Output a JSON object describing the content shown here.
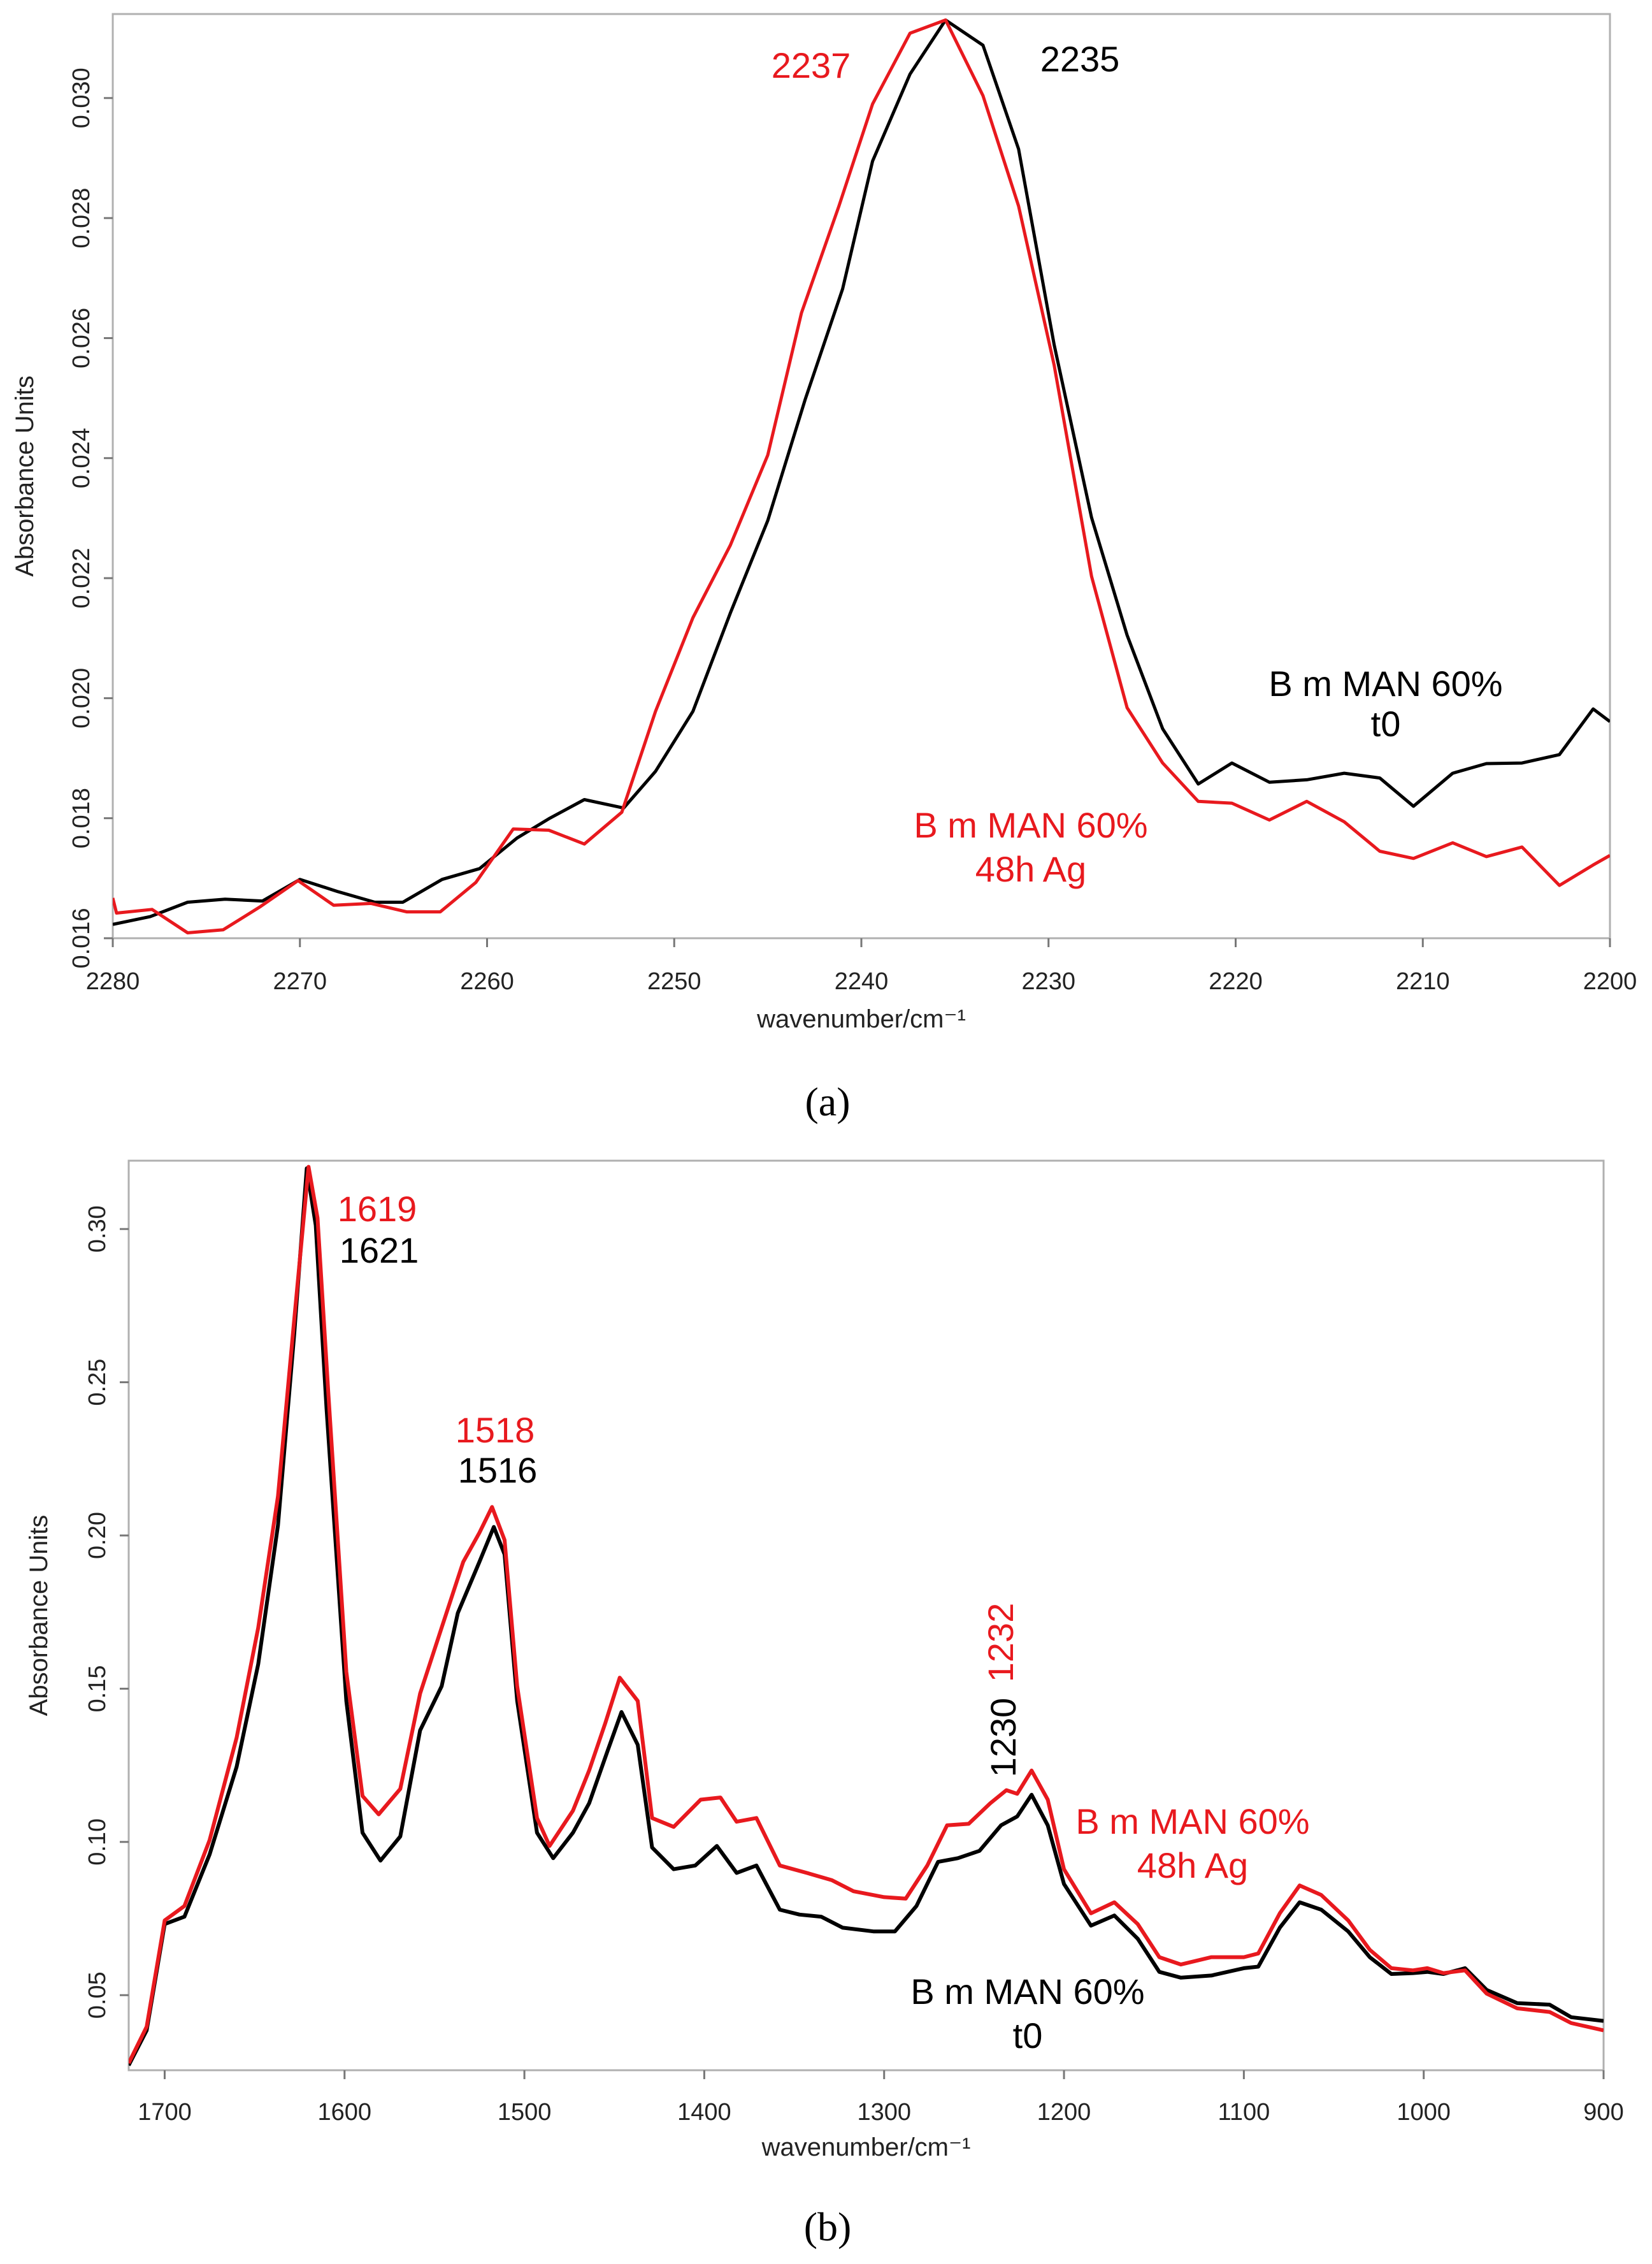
{
  "colors": {
    "t0": "#000000",
    "aged": "#e8191e",
    "frame": "#b0b0b0"
  },
  "chart_data": [
    {
      "type": "line",
      "panel_label": "(a)",
      "xlabel": "wavenumber/cm⁻¹",
      "ylabel": "Absorbance Units",
      "xlim": [
        2280,
        2200
      ],
      "ylim": [
        0.016,
        0.0314
      ],
      "xticks": [
        "2280",
        "2270",
        "2260",
        "2250",
        "2240",
        "2230",
        "2220",
        "2210",
        "2200"
      ],
      "yticks": [
        "0.016",
        "0.018",
        "0.020",
        "0.022",
        "0.024",
        "0.026",
        "0.028",
        "0.030"
      ],
      "grid": false,
      "series": [
        {
          "name": "B m MAN 60% t0",
          "color": "#000000",
          "x": [
            2280,
            2278,
            2276,
            2274,
            2272,
            2270,
            2268,
            2266,
            2264.5,
            2262.4,
            2260.4,
            2258.4,
            2256.7,
            2254.8,
            2252.7,
            2251,
            2249,
            2247,
            2245,
            2243,
            2241,
            2239.4,
            2237.4,
            2235.5,
            2233.5,
            2231.6,
            2229.7,
            2227.7,
            2225.8,
            2223.9,
            2222,
            2220.2,
            2218.2,
            2216.2,
            2214.2,
            2212.3,
            2210.5,
            2208.4,
            2206.6,
            2204.7,
            2202.7,
            2200.9,
            2200
          ],
          "y": [
            0.01623,
            0.01636,
            0.0166,
            0.01665,
            0.01662,
            0.01698,
            0.01678,
            0.0166,
            0.0166,
            0.01698,
            0.01716,
            0.01767,
            0.01799,
            0.01831,
            0.01817,
            0.01878,
            0.01978,
            0.02142,
            0.02296,
            0.02498,
            0.02682,
            0.02895,
            0.0304,
            0.0313,
            0.03088,
            0.02915,
            0.02589,
            0.02301,
            0.02105,
            0.01949,
            0.01857,
            0.01892,
            0.0186,
            0.01864,
            0.01875,
            0.01867,
            0.0182,
            0.01875,
            0.01891,
            0.01892,
            0.01906,
            0.01982,
            0.01961
          ]
        },
        {
          "name": "B m MAN 60% 48h Ag",
          "color": "#e8191e",
          "x": [
            2280,
            2279.8,
            2277.9,
            2276,
            2274.1,
            2272.1,
            2270.1,
            2268.2,
            2266.2,
            2264.3,
            2262.5,
            2260.6,
            2258.6,
            2256.7,
            2254.8,
            2252.8,
            2251,
            2249,
            2247,
            2245,
            2243.2,
            2241.2,
            2239.4,
            2237.4,
            2235.5,
            2233.5,
            2231.6,
            2229.7,
            2227.7,
            2225.8,
            2223.9,
            2222,
            2220.2,
            2218.2,
            2216.2,
            2214.2,
            2212.3,
            2210.5,
            2208.4,
            2206.6,
            2204.7,
            2202.7,
            2200.9,
            2200
          ],
          "y": [
            0.01667,
            0.01642,
            0.01648,
            0.01609,
            0.01614,
            0.01653,
            0.01696,
            0.01655,
            0.01658,
            0.01644,
            0.01644,
            0.01693,
            0.01782,
            0.0178,
            0.01757,
            0.0181,
            0.01978,
            0.02134,
            0.02255,
            0.02405,
            0.02642,
            0.0282,
            0.0299,
            0.03108,
            0.0313,
            0.03004,
            0.0282,
            0.02555,
            0.02203,
            0.01984,
            0.01892,
            0.01828,
            0.01825,
            0.01797,
            0.01828,
            0.01794,
            0.01745,
            0.01733,
            0.01759,
            0.01736,
            0.01752,
            0.01688,
            0.01722,
            0.01738
          ]
        }
      ],
      "annotations": [
        {
          "text": "2237",
          "series": "aged"
        },
        {
          "text": "2235",
          "series": "t0"
        },
        {
          "text": "B m MAN 60%",
          "series": "t0"
        },
        {
          "text": "t0",
          "series": "t0"
        },
        {
          "text": "B m MAN 60%",
          "series": "aged"
        },
        {
          "text": "48h Ag",
          "series": "aged"
        }
      ]
    },
    {
      "type": "line",
      "panel_label": "(b)",
      "xlabel": "wavenumber/cm⁻¹",
      "ylabel": "Absorbance Units",
      "xlim": [
        1720,
        900
      ],
      "ylim": [
        0.0255,
        0.3223
      ],
      "xticks": [
        "1700",
        "1600",
        "1500",
        "1400",
        "1300",
        "1200",
        "1100",
        "1000",
        "900"
      ],
      "yticks": [
        "0.05",
        "0.10",
        "0.15",
        "0.20",
        "0.25",
        "0.30"
      ],
      "grid": false,
      "series": [
        {
          "name": "B m MAN 60% t0",
          "color": "#000000",
          "x": [
            1720,
            1710,
            1700,
            1689,
            1675,
            1660,
            1648,
            1637,
            1628,
            1621,
            1616,
            1610,
            1599,
            1590,
            1580,
            1569,
            1558,
            1546,
            1537,
            1525,
            1517,
            1511,
            1504,
            1493,
            1484,
            1473,
            1464,
            1454,
            1446,
            1437,
            1429,
            1417,
            1405,
            1393,
            1382,
            1371,
            1358,
            1347,
            1335,
            1323,
            1306,
            1294,
            1282,
            1270,
            1259,
            1247,
            1235,
            1226,
            1218,
            1209,
            1200,
            1185,
            1172,
            1159,
            1147,
            1135,
            1118,
            1100,
            1092,
            1080,
            1069,
            1057,
            1042,
            1030,
            1018,
            1006,
            998,
            989,
            977,
            965,
            948,
            930,
            918,
            900
          ],
          "y": [
            0.0271,
            0.0385,
            0.0732,
            0.0756,
            0.0959,
            0.1245,
            0.158,
            0.2033,
            0.2654,
            0.3198,
            0.3012,
            0.2415,
            0.146,
            0.103,
            0.0939,
            0.1018,
            0.1364,
            0.1508,
            0.1747,
            0.1914,
            0.2028,
            0.1938,
            0.146,
            0.103,
            0.0947,
            0.103,
            0.1126,
            0.1293,
            0.1424,
            0.1317,
            0.0982,
            0.0911,
            0.0923,
            0.0987,
            0.0899,
            0.0923,
            0.0779,
            0.0763,
            0.0756,
            0.072,
            0.0708,
            0.0708,
            0.0791,
            0.0935,
            0.0947,
            0.0971,
            0.1054,
            0.1083,
            0.1154,
            0.1054,
            0.0863,
            0.0727,
            0.076,
            0.0684,
            0.0576,
            0.0557,
            0.0564,
            0.0588,
            0.0593,
            0.072,
            0.0803,
            0.0779,
            0.0708,
            0.0624,
            0.0569,
            0.0572,
            0.0576,
            0.0569,
            0.0588,
            0.0517,
            0.0474,
            0.0469,
            0.0428,
            0.0416
          ]
        },
        {
          "name": "B m MAN 60% 48h Ag",
          "color": "#e8191e",
          "x": [
            1720,
            1710,
            1700,
            1689,
            1675,
            1660,
            1648,
            1637,
            1628,
            1620,
            1615,
            1609,
            1599,
            1590,
            1581,
            1569,
            1558,
            1546,
            1534,
            1525,
            1518,
            1511,
            1504,
            1493,
            1486,
            1473,
            1464,
            1455,
            1447,
            1437,
            1429,
            1417,
            1402,
            1391,
            1382,
            1371,
            1358,
            1343,
            1329,
            1317,
            1300,
            1288,
            1276,
            1265,
            1253,
            1241,
            1232,
            1226,
            1218,
            1209,
            1200,
            1185,
            1172,
            1159,
            1147,
            1135,
            1118,
            1100,
            1092,
            1080,
            1069,
            1057,
            1042,
            1030,
            1018,
            1006,
            998,
            989,
            977,
            965,
            948,
            930,
            918,
            900
          ],
          "y": [
            0.0278,
            0.0397,
            0.0744,
            0.0791,
            0.1006,
            0.134,
            0.1699,
            0.2128,
            0.2702,
            0.3203,
            0.3036,
            0.2463,
            0.1555,
            0.115,
            0.109,
            0.1173,
            0.1484,
            0.1699,
            0.1914,
            0.2009,
            0.2093,
            0.1985,
            0.1508,
            0.1078,
            0.0987,
            0.1102,
            0.1233,
            0.1388,
            0.1536,
            0.146,
            0.1078,
            0.1049,
            0.1138,
            0.1145,
            0.1066,
            0.1078,
            0.0923,
            0.0899,
            0.0875,
            0.0839,
            0.082,
            0.0815,
            0.0923,
            0.1054,
            0.1059,
            0.1126,
            0.1169,
            0.1157,
            0.1233,
            0.1138,
            0.0911,
            0.0767,
            0.0803,
            0.0732,
            0.0624,
            0.06,
            0.0624,
            0.0624,
            0.0636,
            0.0767,
            0.0858,
            0.0827,
            0.0744,
            0.0648,
            0.0588,
            0.0581,
            0.0588,
            0.0572,
            0.0581,
            0.0505,
            0.0457,
            0.0445,
            0.0409,
            0.0385
          ]
        }
      ],
      "annotations": [
        {
          "text": "1619",
          "series": "aged"
        },
        {
          "text": "1621",
          "series": "t0"
        },
        {
          "text": "1518",
          "series": "aged"
        },
        {
          "text": "1516",
          "series": "t0"
        },
        {
          "text": "1232",
          "series": "aged"
        },
        {
          "text": "1230",
          "series": "t0"
        },
        {
          "text": "B m MAN 60%",
          "series": "aged"
        },
        {
          "text": "48h Ag",
          "series": "aged"
        },
        {
          "text": "B m MAN 60%",
          "series": "t0"
        },
        {
          "text": "t0",
          "series": "t0"
        }
      ]
    }
  ]
}
